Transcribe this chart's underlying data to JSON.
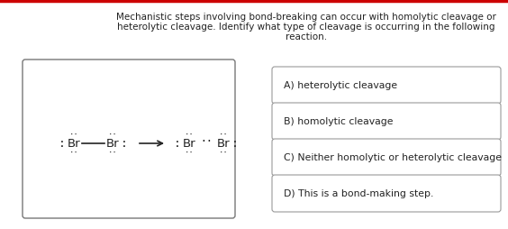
{
  "title_line1": "Mechanistic steps involving bond-breaking can occur with homolytic cleavage or",
  "title_line2": "heterolytic cleavage. Identify what type of cleavage is occurring in the following",
  "title_line3": "reaction.",
  "options": [
    "A) heterolytic cleavage",
    "B) homolytic cleavage",
    "C) Neither homolytic or heterolytic cleavage",
    "D) This is a bond-making step."
  ],
  "bg_color": "#ffffff",
  "text_color": "#222222",
  "top_border_color": "#cc0000",
  "font_size_title": 7.5,
  "font_size_options": 7.8,
  "font_size_chem": 9.5
}
